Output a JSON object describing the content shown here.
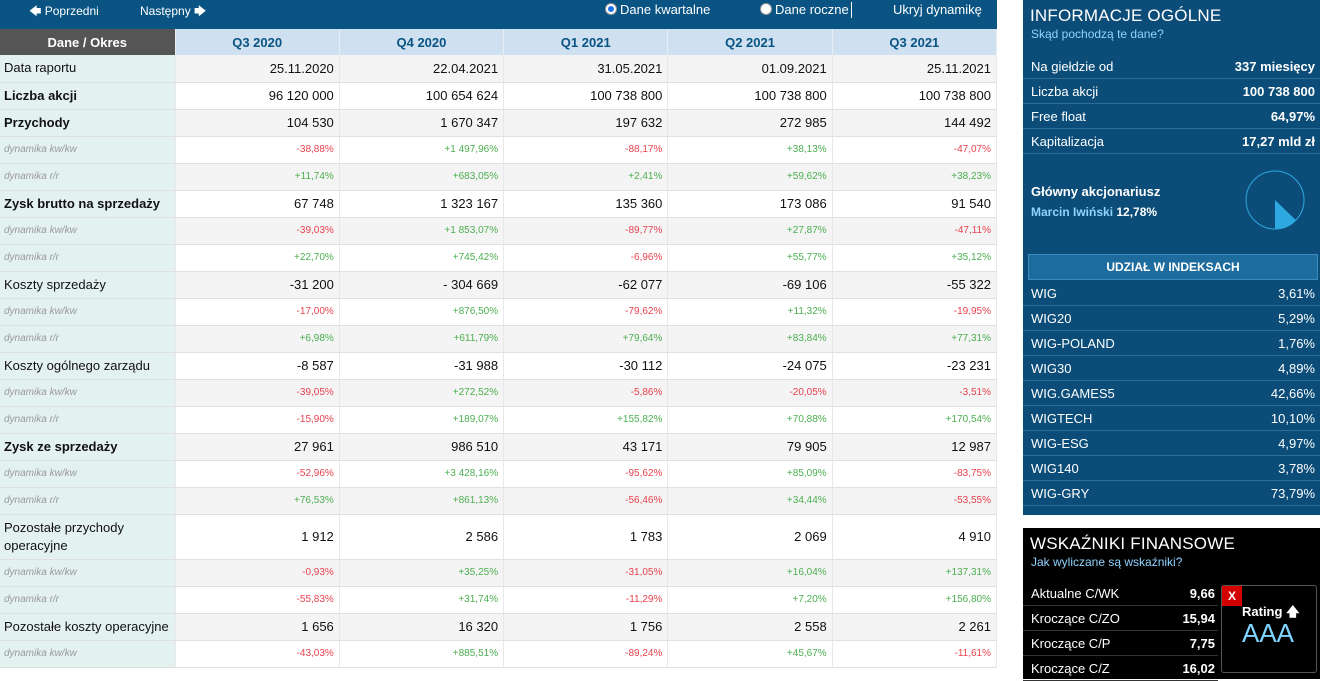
{
  "nav": {
    "prev": "Poprzedni",
    "next": "Następny",
    "quarterly": "Dane kwartalne",
    "yearly": "Dane roczne",
    "hide": "Ukryj dynamikę"
  },
  "table": {
    "corner": "Dane / Okres",
    "periods": [
      "Q3 2020",
      "Q4 2020",
      "Q1 2021",
      "Q2 2021",
      "Q3 2021"
    ],
    "rows": [
      {
        "label": "Data raportu",
        "type": "plain",
        "values": [
          "25.11.2020",
          "22.04.2021",
          "31.05.2021",
          "01.09.2021",
          "25.11.2021"
        ]
      },
      {
        "label": "Liczba akcji",
        "type": "bold",
        "values": [
          "96 120 000",
          "100 654 624",
          "100 738 800",
          "100 738 800",
          "100 738 800"
        ]
      },
      {
        "label": "Przychody",
        "type": "bold",
        "values": [
          "104 530",
          "1 670 347",
          "197 632",
          "272 985",
          "144 492"
        ]
      },
      {
        "label": "dynamika kw/kw",
        "type": "dyn",
        "values": [
          "-38,88%",
          "+1 497,96%",
          "-88,17%",
          "+38,13%",
          "-47,07%"
        ]
      },
      {
        "label": "dynamika r/r",
        "type": "dyn",
        "values": [
          "+11,74%",
          "+683,05%",
          "+2,41%",
          "+59,62%",
          "+38,23%"
        ]
      },
      {
        "label": "Zysk brutto na sprzedaży",
        "type": "bold",
        "values": [
          "67 748",
          "1 323 167",
          "135 360",
          "173 086",
          "91 540"
        ]
      },
      {
        "label": "dynamika kw/kw",
        "type": "dyn",
        "values": [
          "-39,03%",
          "+1 853,07%",
          "-89,77%",
          "+27,87%",
          "-47,11%"
        ]
      },
      {
        "label": "dynamika r/r",
        "type": "dyn",
        "values": [
          "+22,70%",
          "+745,42%",
          "-6,96%",
          "+55,77%",
          "+35,12%"
        ]
      },
      {
        "label": "Koszty sprzedaży",
        "type": "plain",
        "values": [
          "-31 200",
          "- 304 669",
          "-62 077",
          "-69 106",
          "-55 322"
        ]
      },
      {
        "label": "dynamika kw/kw",
        "type": "dyn",
        "values": [
          "-17,00%",
          "+876,50%",
          "-79,62%",
          "+11,32%",
          "-19,95%"
        ]
      },
      {
        "label": "dynamika r/r",
        "type": "dyn",
        "values": [
          "+6,98%",
          "+611,79%",
          "+79,64%",
          "+83,84%",
          "+77,31%"
        ]
      },
      {
        "label": "Koszty ogólnego zarządu",
        "type": "plain",
        "values": [
          "-8 587",
          "-31 988",
          "-30 112",
          "-24 075",
          "-23 231"
        ]
      },
      {
        "label": "dynamika kw/kw",
        "type": "dyn",
        "values": [
          "-39,05%",
          "+272,52%",
          "-5,86%",
          "-20,05%",
          "-3,51%"
        ]
      },
      {
        "label": "dynamika r/r",
        "type": "dyn",
        "values": [
          "-15,90%",
          "+189,07%",
          "+155,82%",
          "+70,88%",
          "+170,54%"
        ]
      },
      {
        "label": "Zysk ze sprzedaży",
        "type": "bold",
        "values": [
          "27 961",
          "986 510",
          "43 171",
          "79 905",
          "12 987"
        ]
      },
      {
        "label": "dynamika kw/kw",
        "type": "dyn",
        "values": [
          "-52,96%",
          "+3 428,16%",
          "-95,62%",
          "+85,09%",
          "-83,75%"
        ]
      },
      {
        "label": "dynamika r/r",
        "type": "dyn",
        "values": [
          "+76,53%",
          "+861,13%",
          "-56,46%",
          "+34,44%",
          "-53,55%"
        ]
      },
      {
        "label": "Pozostałe przychody operacyjne",
        "type": "tall",
        "values": [
          "1 912",
          "2 586",
          "1 783",
          "2 069",
          "4 910"
        ]
      },
      {
        "label": "dynamika kw/kw",
        "type": "dyn",
        "values": [
          "-0,93%",
          "+35,25%",
          "-31,05%",
          "+16,04%",
          "+137,31%"
        ]
      },
      {
        "label": "dynamika r/r",
        "type": "dyn",
        "values": [
          "-55,83%",
          "+31,74%",
          "-11,29%",
          "+7,20%",
          "+156,80%"
        ]
      },
      {
        "label": "Pozostałe koszty operacyjne",
        "type": "plain",
        "values": [
          "1 656",
          "16 320",
          "1 756",
          "2 558",
          "2 261"
        ]
      },
      {
        "label": "dynamika kw/kw",
        "type": "dyn",
        "values": [
          "-43,03%",
          "+885,51%",
          "-89,24%",
          "+45,67%",
          "-11,61%"
        ]
      }
    ]
  },
  "info": {
    "title": "INFORMACJE OGÓLNE",
    "link": "Skąd pochodzą te dane?",
    "rows": [
      {
        "k": "Na giełdzie od",
        "v": "337 miesięcy"
      },
      {
        "k": "Liczba akcji",
        "v": "100 738 800"
      },
      {
        "k": "Free float",
        "v": "64,97%"
      },
      {
        "k": "Kapitalizacja",
        "v": "17,27 mld zł"
      }
    ],
    "holder_title": "Główny akcjonariusz",
    "holder_name": "Marcin Iwiński",
    "holder_share": "12,78%",
    "holder_fraction": 0.1278,
    "index_title": "UDZIAŁ W INDEKSACH",
    "indices": [
      {
        "k": "WIG",
        "v": "3,61%"
      },
      {
        "k": "WIG20",
        "v": "5,29%"
      },
      {
        "k": "WIG-POLAND",
        "v": "1,76%"
      },
      {
        "k": "WIG30",
        "v": "4,89%"
      },
      {
        "k": "WIG.GAMES5",
        "v": "42,66%"
      },
      {
        "k": "WIGTECH",
        "v": "10,10%"
      },
      {
        "k": "WIG-ESG",
        "v": "4,97%"
      },
      {
        "k": "WIG140",
        "v": "3,78%"
      },
      {
        "k": "WIG-GRY",
        "v": "73,79%"
      }
    ]
  },
  "fin": {
    "title": "WSKAŹNIKI FINANSOWE",
    "link": "Jak wyliczane są wskaźniki?",
    "rows": [
      {
        "k": "Aktualne C/WK",
        "v": "9,66"
      },
      {
        "k": "Kroczące C/ZO",
        "v": "15,94"
      },
      {
        "k": "Kroczące C/P",
        "v": "7,75"
      },
      {
        "k": "Kroczące C/Z",
        "v": "16,02"
      }
    ],
    "rating_close": "X",
    "rating_label": "Rating",
    "rating_value": "AAA"
  },
  "colors": {
    "header_blue": "#0a5484",
    "panel_blue": "#0b4d78",
    "neg": "#e8424e",
    "pos": "#4caf50",
    "pie": "#2ea8e0"
  },
  "icons": {
    "prev": "arrow-left-icon",
    "next": "arrow-right-icon",
    "rating": "arrow-up-icon"
  }
}
